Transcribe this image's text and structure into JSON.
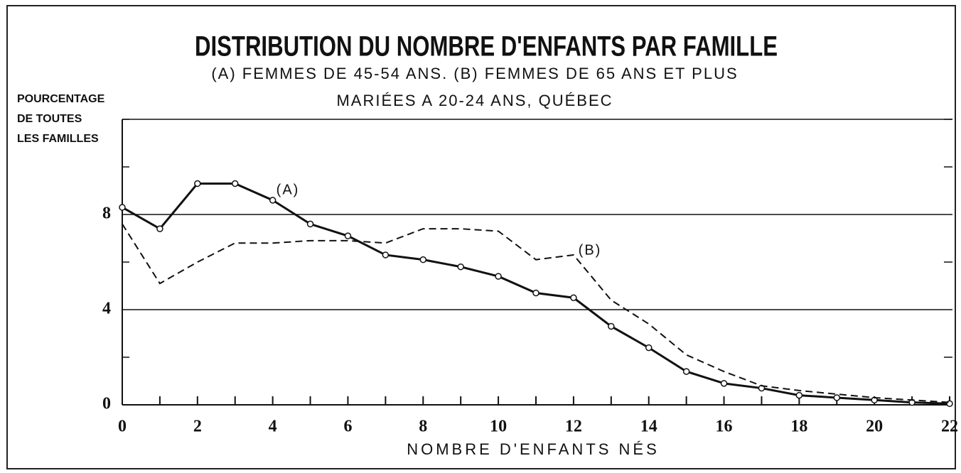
{
  "chart_data": {
    "type": "line",
    "title": "DISTRIBUTION DU NOMBRE D'ENFANTS PAR FAMILLE",
    "subtitle": [
      "(A) FEMMES DE 45-54 ANS. (B) FEMMES DE 65 ANS ET PLUS",
      "MARIÉES A 20-24 ANS, QUÉBEC"
    ],
    "y_label": [
      "POURCENTAGE",
      "DE TOUTES",
      "LES FAMILLES"
    ],
    "x_label": "NOMBRE D'ENFANTS NÉS",
    "x": [
      0,
      1,
      2,
      3,
      4,
      5,
      6,
      7,
      8,
      9,
      10,
      11,
      12,
      13,
      14,
      15,
      16,
      17,
      18,
      19,
      20,
      21,
      22
    ],
    "series": [
      {
        "name": "(A)",
        "color": "#111111",
        "dashed": false,
        "markers": true,
        "values": [
          8.3,
          7.4,
          9.3,
          9.3,
          8.6,
          7.6,
          7.1,
          6.3,
          6.1,
          5.8,
          5.4,
          4.7,
          4.5,
          3.3,
          2.4,
          1.4,
          0.9,
          0.7,
          0.4,
          0.3,
          0.2,
          0.1,
          0.05
        ]
      },
      {
        "name": "(B)",
        "color": "#111111",
        "dashed": true,
        "markers": false,
        "values": [
          7.6,
          5.1,
          6.0,
          6.8,
          6.8,
          6.9,
          6.9,
          6.8,
          7.4,
          7.4,
          7.3,
          6.1,
          6.3,
          4.4,
          3.4,
          2.1,
          1.4,
          0.8,
          0.6,
          0.45,
          0.3,
          0.2,
          0.1
        ]
      }
    ],
    "xlim": [
      0,
      22
    ],
    "ylim": [
      0,
      12
    ],
    "xticks": [
      0,
      2,
      4,
      6,
      8,
      10,
      12,
      14,
      16,
      18,
      20,
      22
    ],
    "minor_xticks": [
      1,
      3,
      5,
      7,
      9,
      11,
      13,
      15,
      17,
      19,
      21
    ],
    "yticks": [
      0,
      4,
      8
    ],
    "minor_yticks": [
      2,
      6,
      10,
      12
    ],
    "grid": true
  }
}
